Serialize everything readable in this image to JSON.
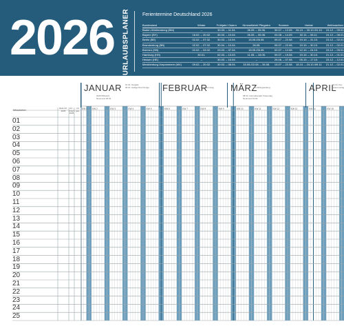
{
  "header": {
    "year": "2026",
    "vertical_label": "URLAUBSPLANER",
    "holiday_title": "Ferientermine Deutschland 2026",
    "columns": [
      "Bundesland",
      "Winter",
      "Frühjahr/ Ostern",
      "Himmelfahrt/ Pfingsten",
      "Sommer",
      "Herbst",
      "Weihnachten"
    ],
    "rows": [
      [
        "Baden-Württemberg (BW)",
        "–",
        "30.03. – 11.04.",
        "26.05. – 05.06.",
        "30.07. – 12.09.",
        "26.10. – 30.10./31.10.",
        "23.12. – 09.01."
      ],
      [
        "Bayern (BY)",
        "16.02. – 20.02.",
        "30.03. – 10.04.",
        "26.05. – 05.06.",
        "03.08. – 14.09.",
        "02.11. – 06.11.",
        "24.12. – 08.01."
      ],
      [
        "Berlin (BE)",
        "02.02. – 07.02.",
        "30.03. – 10.04.",
        "15.05./26.05.",
        "09.07. – 22.08.",
        "19.10. – 31.10.",
        "23.12. – 02.01."
      ],
      [
        "Brandenburg (BB)",
        "02.02. – 07.02.",
        "30.04. – 10.04.",
        "26.05.",
        "09.07. – 22.08.",
        "19.10. – 30.10.",
        "23.12. – 02.01."
      ],
      [
        "Bremen (HB)",
        "02.02. – 03.02.",
        "23.03. – 07.04.",
        "15.05./26.05.",
        "02.07. – 12.08.",
        "12.10. – 24.10.",
        "23.12. – 09.01."
      ],
      [
        "Hamburg (HH)",
        "30.01.",
        "02.03. – 13.03.",
        "11.05. – 15.05.",
        "09.07. – 19.08.",
        "19.10. – 30.10.",
        "21.12. – 01.01."
      ],
      [
        "Hessen (HE)",
        "–",
        "30.03. – 10.04.",
        "–",
        "29.06. – 07.08.",
        "05.10. – 17.10.",
        "23.12. – 12.01."
      ],
      [
        "Mecklenburg-Vorpommern (MV)",
        "09.02. – 20.02.",
        "30.03. – 08.04.",
        "15.05./22.05. – 26.05.",
        "13.07. – 22.08.",
        "15.10. – 24.10./09.11. – 27.11.",
        "21.12. – 02.01."
      ]
    ]
  },
  "planner": {
    "employee_header": "Mitarbeiter",
    "extra_headers": [
      {
        "line1": "Rest-Url.",
        "line2": "2025"
      },
      {
        "line1": "Url.-Anspr.",
        "line2": "2026"
      },
      {
        "line1": "Url.",
        "line2": "ges."
      }
    ],
    "months": [
      {
        "name": "JANUAR",
        "note1": "01.01. Neujahr",
        "note2": "06.01. Heilige Drei Könige",
        "note3": "2026 Mittwoch",
        "note4": "Neumond 18.01."
      },
      {
        "name": "FEBRUAR",
        "note1": "",
        "note2": "Rosenmontag",
        "note3": "",
        "note4": ""
      },
      {
        "name": "MÄRZ",
        "note1": "",
        "note2": "Frühlingsanfang",
        "note3": "08.03. Internationaler Frauentag",
        "note4": "Neumond 19.03."
      },
      {
        "name": "APRIL",
        "note1": "01.04. Kar...",
        "note2": "Ostermontag",
        "note3": "",
        "note4": ""
      }
    ],
    "weeks": [
      "KW 1",
      "KW 2",
      "KW 3",
      "KW 4",
      "KW 5",
      "KW 6",
      "KW 7",
      "KW 8",
      "KW 9",
      "KW 10",
      "KW 11",
      "KW 12",
      "KW 13",
      "KW 14",
      "KW 15"
    ],
    "rows": [
      "01",
      "02",
      "03",
      "04",
      "05",
      "06",
      "07",
      "08",
      "09",
      "10",
      "11",
      "12",
      "13",
      "14",
      "15",
      "16",
      "17",
      "18",
      "19",
      "20",
      "21",
      "22",
      "23",
      "24",
      "25"
    ]
  },
  "colors": {
    "brand": "#255c7c",
    "weekend": "#6d9fbc",
    "grid": "#9aa3a8"
  }
}
